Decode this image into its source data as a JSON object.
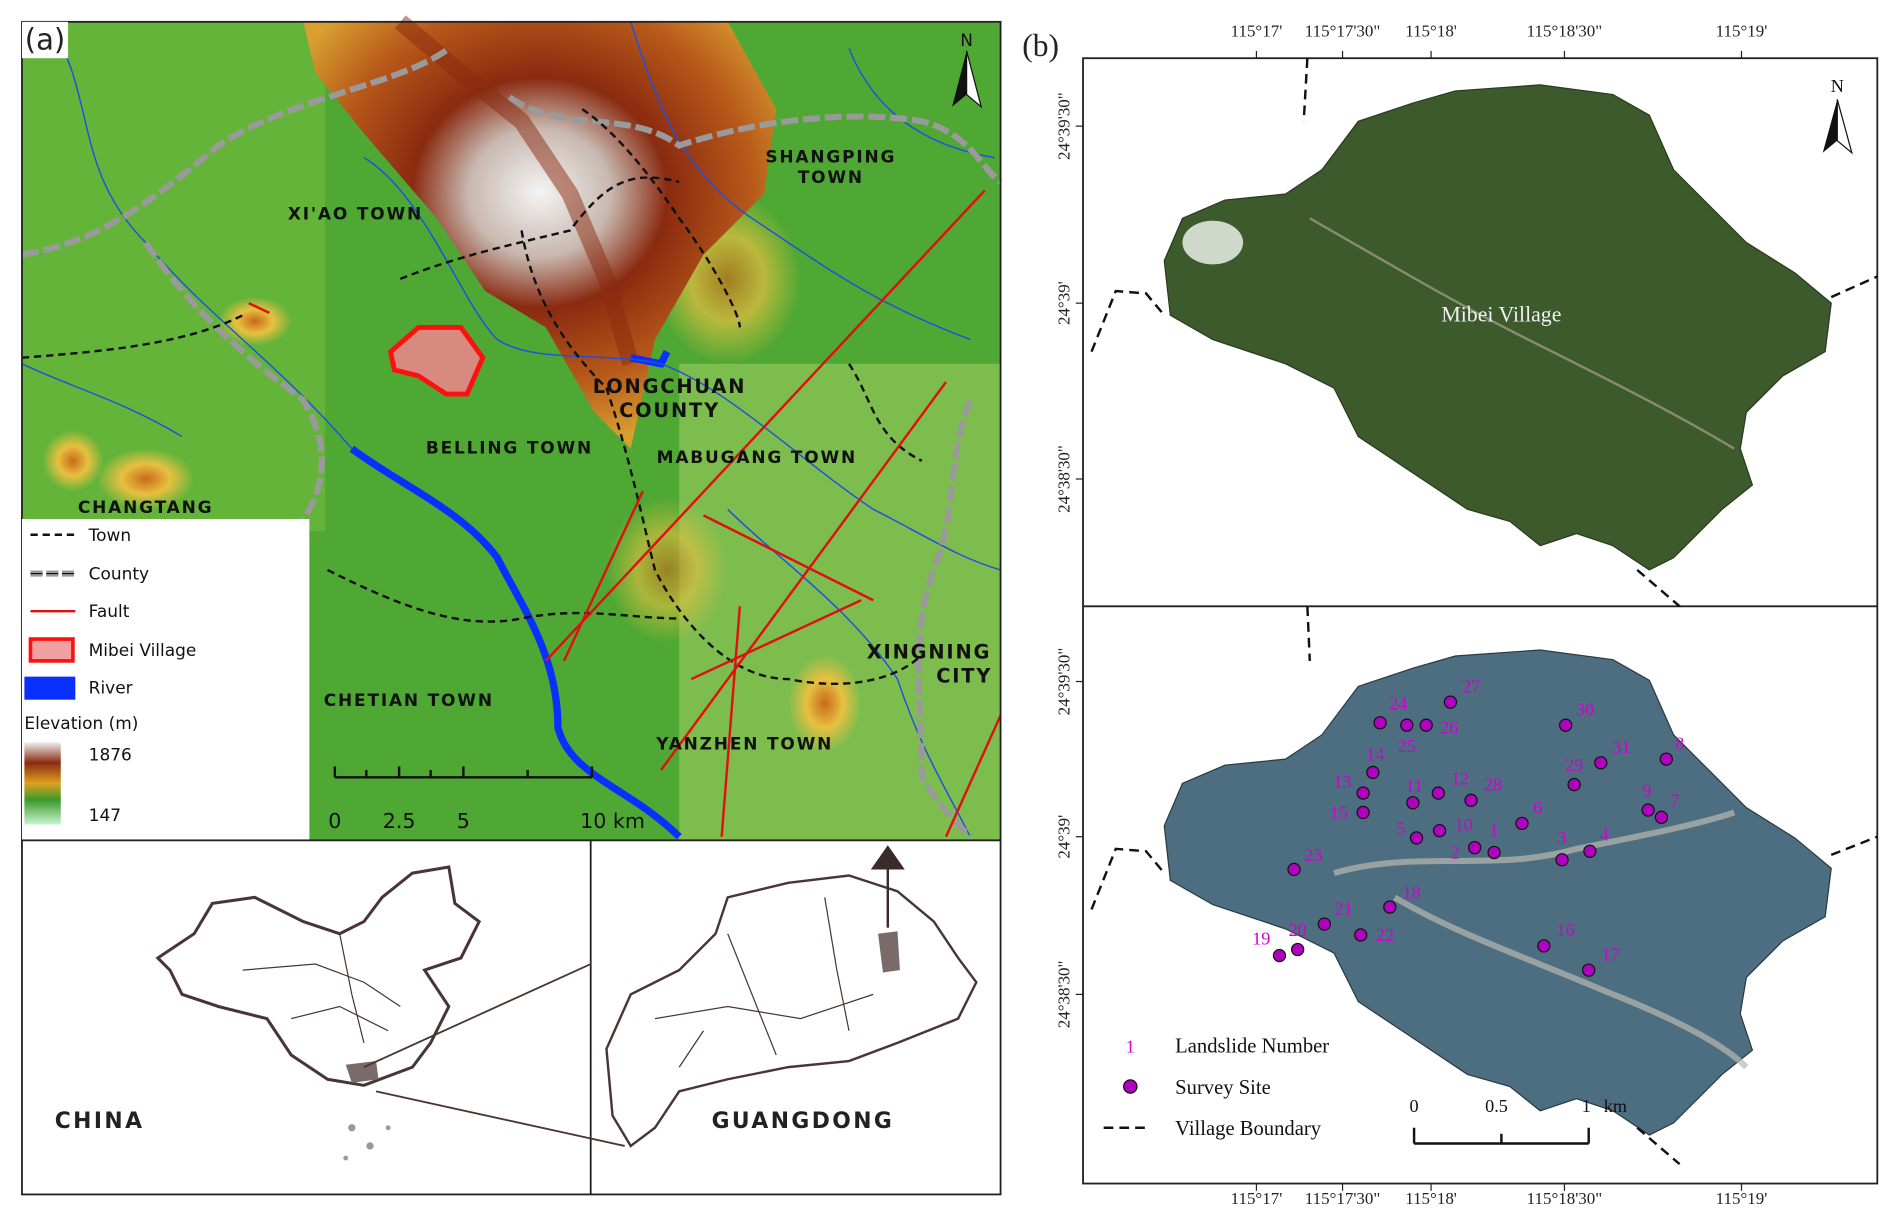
{
  "panel_a": {
    "label": "(a)",
    "north": "N",
    "places": [
      "SHANGPING",
      "TOWN",
      "XI'AO TOWN",
      "LONGCHUAN",
      "COUNTY",
      "BELLING TOWN",
      "MABUGANG TOWN",
      "CHANGTANG",
      "XINGNING",
      "CITY",
      "CHETIAN TOWN",
      "YANZHEN TOWN"
    ],
    "legend": {
      "town": "Town",
      "county": "County",
      "fault": "Fault",
      "village": "Mibei Village",
      "river": "River",
      "elevation_title": "Elevation (m)",
      "elevation_max": 1876,
      "elevation_min": 147
    },
    "scale": [
      "0",
      "2.5",
      "5",
      "10 km"
    ],
    "inset": {
      "china": "CHINA",
      "guangdong": "GUANGDONG"
    }
  },
  "panel_b": {
    "label": "(b)",
    "north": "N",
    "village": "Mibei Village",
    "lon_ticks": [
      "115°17'",
      "115°17'30\"",
      "115°18'",
      "115°18'30\"",
      "115°19'"
    ],
    "lat_ticks": [
      "24°39'30\"",
      "24°39'",
      "24°38'30\""
    ],
    "landslides": [
      "1",
      "2",
      "3",
      "4",
      "5",
      "6",
      "7",
      "8",
      "9",
      "10",
      "11",
      "12",
      "13",
      "14",
      "15",
      "16",
      "17",
      "18",
      "19",
      "20",
      "21",
      "22",
      "23",
      "24",
      "25",
      "26",
      "27",
      "28",
      "29",
      "30",
      "31"
    ],
    "legend": {
      "number_sample": "1",
      "number": "Landslide Number",
      "site": "Survey Site",
      "boundary": "Village Boundary"
    },
    "scale": [
      "0",
      "0.5",
      "1",
      "km"
    ]
  }
}
